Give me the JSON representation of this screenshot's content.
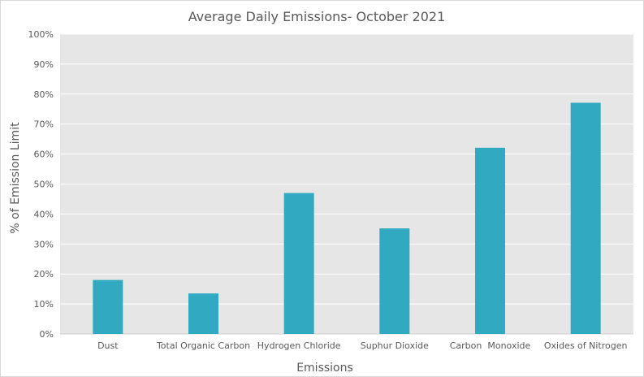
{
  "chart_data": {
    "type": "bar",
    "title": "Average Daily Emissions- October 2021",
    "xlabel": "Emissions",
    "ylabel": "% of Emission Limit",
    "categories": [
      "Dust",
      "Total Organic Carbon",
      "Hydrogen Chloride",
      "Suphur Dioxide",
      "Carbon  Monoxide",
      "Oxides of Nitrogen"
    ],
    "values": [
      18,
      13.5,
      47,
      35.2,
      62.1,
      77.1
    ],
    "ylim": [
      0,
      100
    ],
    "y_ticks": [
      0,
      10,
      20,
      30,
      40,
      50,
      60,
      70,
      80,
      90,
      100
    ],
    "y_tick_labels": [
      "0%",
      "10%",
      "20%",
      "30%",
      "40%",
      "50%",
      "60%",
      "70%",
      "80%",
      "90%",
      "100%"
    ],
    "grid": true,
    "legend": "none",
    "colors": {
      "bar": "#31a9c1",
      "plot_background": "#e6e6e6",
      "gridline": "#ffffff",
      "text": "#595959"
    }
  }
}
